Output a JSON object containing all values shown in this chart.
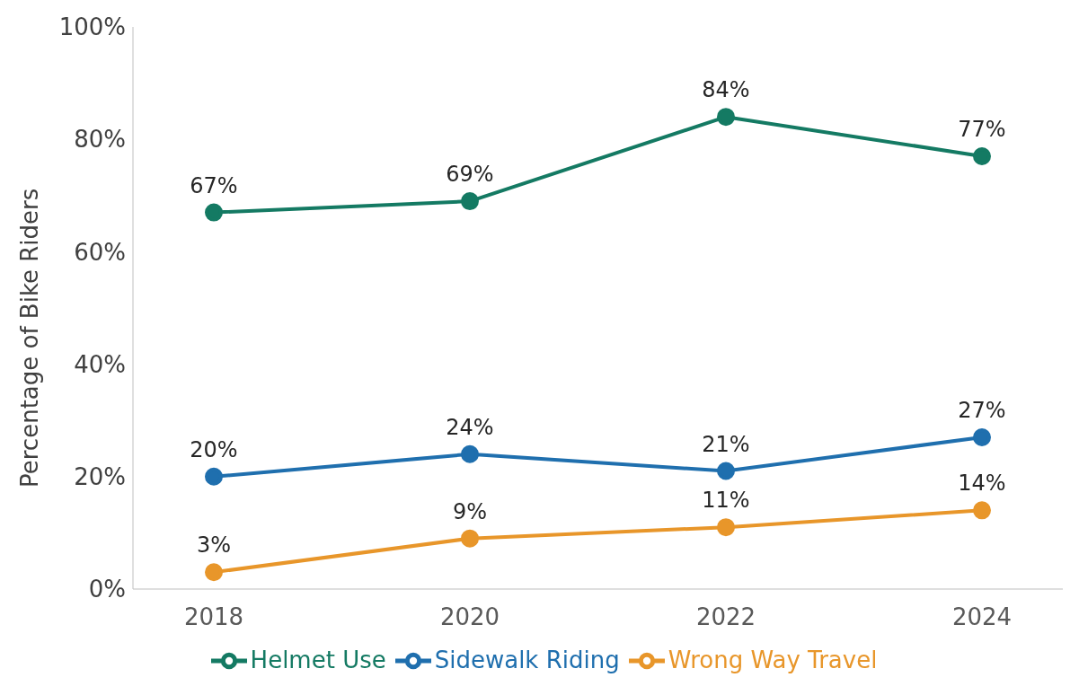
{
  "chart_data": {
    "type": "line",
    "ylabel": "Percentage of Bike Riders",
    "categories": [
      "2018",
      "2020",
      "2022",
      "2024"
    ],
    "series": [
      {
        "name": "Helmet Use",
        "color": "#147a63",
        "values": [
          67,
          69,
          84,
          77
        ],
        "value_labels": [
          "67%",
          "69%",
          "84%",
          "77%"
        ]
      },
      {
        "name": "Sidewalk Riding",
        "color": "#1f6fae",
        "values": [
          20,
          24,
          21,
          27
        ],
        "value_labels": [
          "20%",
          "24%",
          "21%",
          "27%"
        ]
      },
      {
        "name": "Wrong Way Travel",
        "color": "#e8962a",
        "values": [
          3,
          9,
          11,
          14
        ],
        "value_labels": [
          "3%",
          "9%",
          "11%",
          "14%"
        ]
      }
    ],
    "ylim": [
      0,
      100
    ],
    "yticks": [
      {
        "value": 0,
        "label": "0%"
      },
      {
        "value": 20,
        "label": "20%"
      },
      {
        "value": 40,
        "label": "40%"
      },
      {
        "value": 60,
        "label": "60%"
      },
      {
        "value": 80,
        "label": "80%"
      },
      {
        "value": 100,
        "label": "100%"
      }
    ],
    "grid": false,
    "legend": "bottom",
    "marker": "circle",
    "line_style": "solid"
  }
}
